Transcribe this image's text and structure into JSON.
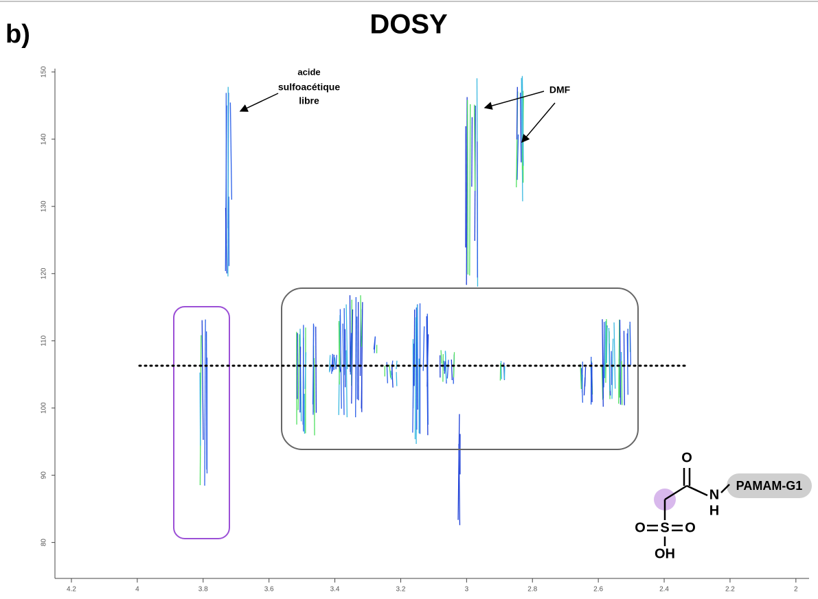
{
  "panel_label": "b)",
  "chart_data": {
    "type": "contour",
    "title": "DOSY",
    "xlim": [
      4.25,
      1.96
    ],
    "ylim": [
      77,
      150.5
    ],
    "xticks": [
      4.2,
      4,
      3.8,
      3.6,
      3.4,
      3.2,
      3,
      2.8,
      2.6,
      2.4,
      2.2,
      2
    ],
    "yticks": [
      80,
      90,
      100,
      110,
      120,
      130,
      140,
      150
    ],
    "reference_line": 106.3,
    "annotations": {
      "free_acid": [
        "acide",
        "sulfoacétique",
        "libre"
      ],
      "dmf": "DMF"
    }
  },
  "structure": {
    "substituent": "PAMAM-G1",
    "carbonyl_o": "O",
    "amide_n": "N",
    "amide_h": "H",
    "sulfur": "S",
    "sulfonyl_o_left": "O",
    "sulfonyl_o_right": "O",
    "hydroxyl": "OH"
  }
}
